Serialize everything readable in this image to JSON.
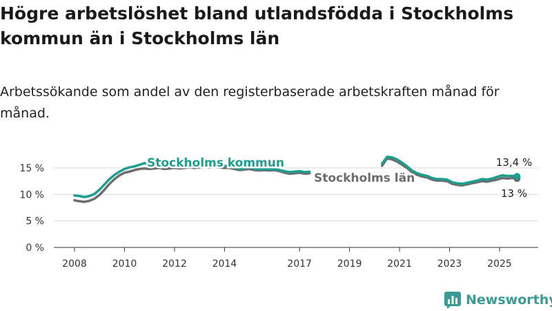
{
  "title": "Högre arbetslöshet bland utlandsfödda i Stockholms kommun än i Stockholms län",
  "subtitle": "Arbetssökande som andel av den registerbaserade arbetskraften månad för månad.",
  "brand": {
    "name": "Newsworthy",
    "icon": "newsworthy-chart-logo-icon",
    "color": "#3a9b95"
  },
  "chart_data": {
    "type": "line",
    "ylim": [
      0,
      17
    ],
    "xlim": [
      2007.6,
      2026.1
    ],
    "yticks": [
      {
        "value": 0,
        "label": "0 %"
      },
      {
        "value": 5,
        "label": "5 %"
      },
      {
        "value": 10,
        "label": "10 %"
      },
      {
        "value": 15,
        "label": "15 %"
      }
    ],
    "xticks": [
      {
        "value": 2008,
        "label": "2008"
      },
      {
        "value": 2010,
        "label": "2010"
      },
      {
        "value": 2012,
        "label": "2012"
      },
      {
        "value": 2014,
        "label": "2014"
      },
      {
        "value": 2017,
        "label": "2017"
      },
      {
        "value": 2019,
        "label": "2019"
      },
      {
        "value": 2021,
        "label": "2021"
      },
      {
        "value": 2023,
        "label": "2023"
      },
      {
        "value": 2025,
        "label": "2025"
      }
    ],
    "grid": true,
    "series": [
      {
        "name": "Stockholms län",
        "color": "#6d6d6d",
        "label_color": "#6d6d6d",
        "end_label": "13 %",
        "end_value": 13.0,
        "segments": [
          [
            [
              2008.0,
              8.9
            ],
            [
              2008.2,
              8.7
            ],
            [
              2008.4,
              8.6
            ],
            [
              2008.6,
              8.8
            ],
            [
              2008.8,
              9.2
            ],
            [
              2009.0,
              9.9
            ],
            [
              2009.2,
              10.9
            ],
            [
              2009.4,
              12.0
            ],
            [
              2009.6,
              12.9
            ],
            [
              2009.8,
              13.6
            ],
            [
              2010.0,
              14.1
            ],
            [
              2010.2,
              14.3
            ],
            [
              2010.4,
              14.6
            ],
            [
              2010.6,
              14.8
            ],
            [
              2010.8,
              14.9
            ],
            [
              2011.0,
              14.8
            ],
            [
              2011.2,
              14.9
            ],
            [
              2011.4,
              15.0
            ],
            [
              2011.6,
              14.8
            ],
            [
              2011.8,
              14.9
            ],
            [
              2012.0,
              15.0
            ],
            [
              2012.2,
              14.9
            ],
            [
              2012.4,
              15.0
            ],
            [
              2012.6,
              15.1
            ],
            [
              2012.8,
              15.0
            ],
            [
              2013.0,
              15.1
            ],
            [
              2013.2,
              15.2
            ],
            [
              2013.4,
              15.1
            ],
            [
              2013.6,
              15.2
            ],
            [
              2013.8,
              15.1
            ],
            [
              2014.0,
              15.0
            ],
            [
              2014.2,
              15.0
            ],
            [
              2014.4,
              14.8
            ],
            [
              2014.6,
              14.6
            ],
            [
              2014.8,
              14.7
            ],
            [
              2015.0,
              14.8
            ],
            [
              2015.2,
              14.6
            ],
            [
              2015.4,
              14.5
            ],
            [
              2015.6,
              14.6
            ],
            [
              2015.8,
              14.5
            ],
            [
              2016.0,
              14.6
            ],
            [
              2016.2,
              14.4
            ],
            [
              2016.4,
              14.1
            ],
            [
              2016.6,
              13.9
            ],
            [
              2016.8,
              14.0
            ],
            [
              2017.0,
              14.1
            ],
            [
              2017.2,
              13.9
            ],
            [
              2017.4,
              14.0
            ]
          ],
          [
            [
              2020.3,
              15.4
            ],
            [
              2020.5,
              16.8
            ],
            [
              2020.7,
              16.6
            ],
            [
              2020.9,
              16.2
            ],
            [
              2021.1,
              15.6
            ],
            [
              2021.3,
              15.0
            ],
            [
              2021.5,
              14.2
            ],
            [
              2021.7,
              13.7
            ],
            [
              2021.9,
              13.4
            ],
            [
              2022.1,
              13.2
            ],
            [
              2022.3,
              12.8
            ],
            [
              2022.5,
              12.6
            ],
            [
              2022.7,
              12.6
            ],
            [
              2022.9,
              12.5
            ],
            [
              2023.1,
              12.0
            ],
            [
              2023.3,
              11.8
            ],
            [
              2023.5,
              11.7
            ],
            [
              2023.7,
              11.9
            ],
            [
              2023.9,
              12.1
            ],
            [
              2024.1,
              12.3
            ],
            [
              2024.3,
              12.5
            ],
            [
              2024.5,
              12.4
            ],
            [
              2024.7,
              12.6
            ],
            [
              2024.9,
              12.8
            ],
            [
              2025.1,
              13.1
            ],
            [
              2025.3,
              13.0
            ],
            [
              2025.5,
              13.1
            ],
            [
              2025.7,
              13.0
            ]
          ]
        ]
      },
      {
        "name": "Stockholms kommun",
        "color": "#1a9e8f",
        "label_color": "#1a9e8f",
        "end_label": "13,4 %",
        "end_value": 13.4,
        "segments": [
          [
            [
              2008.0,
              9.8
            ],
            [
              2008.2,
              9.7
            ],
            [
              2008.4,
              9.5
            ],
            [
              2008.6,
              9.7
            ],
            [
              2008.8,
              10.1
            ],
            [
              2009.0,
              10.9
            ],
            [
              2009.2,
              11.9
            ],
            [
              2009.4,
              12.9
            ],
            [
              2009.6,
              13.7
            ],
            [
              2009.8,
              14.3
            ],
            [
              2010.0,
              14.8
            ],
            [
              2010.2,
              15.1
            ],
            [
              2010.4,
              15.3
            ],
            [
              2010.6,
              15.6
            ],
            [
              2010.8,
              15.9
            ],
            [
              2011.0,
              15.6
            ],
            [
              2011.2,
              15.7
            ],
            [
              2011.4,
              15.6
            ],
            [
              2011.6,
              15.3
            ],
            [
              2011.8,
              15.5
            ],
            [
              2012.0,
              15.6
            ],
            [
              2012.2,
              15.4
            ],
            [
              2012.4,
              15.5
            ],
            [
              2012.6,
              15.6
            ],
            [
              2012.8,
              15.4
            ],
            [
              2013.0,
              15.6
            ],
            [
              2013.2,
              15.7
            ],
            [
              2013.4,
              15.5
            ],
            [
              2013.6,
              15.6
            ],
            [
              2013.8,
              15.5
            ],
            [
              2014.0,
              15.4
            ],
            [
              2014.2,
              15.3
            ],
            [
              2014.4,
              15.1
            ],
            [
              2014.6,
              14.8
            ],
            [
              2014.8,
              15.0
            ],
            [
              2015.0,
              15.1
            ],
            [
              2015.2,
              14.9
            ],
            [
              2015.4,
              14.7
            ],
            [
              2015.6,
              14.8
            ],
            [
              2015.8,
              14.7
            ],
            [
              2016.0,
              14.8
            ],
            [
              2016.2,
              14.6
            ],
            [
              2016.4,
              14.4
            ],
            [
              2016.6,
              14.2
            ],
            [
              2016.8,
              14.3
            ],
            [
              2017.0,
              14.4
            ],
            [
              2017.2,
              14.2
            ],
            [
              2017.4,
              14.3
            ]
          ],
          [
            [
              2020.3,
              15.8
            ],
            [
              2020.5,
              17.1
            ],
            [
              2020.7,
              17.0
            ],
            [
              2020.9,
              16.6
            ],
            [
              2021.1,
              16.0
            ],
            [
              2021.3,
              15.3
            ],
            [
              2021.5,
              14.5
            ],
            [
              2021.7,
              14.0
            ],
            [
              2021.9,
              13.7
            ],
            [
              2022.1,
              13.5
            ],
            [
              2022.3,
              13.1
            ],
            [
              2022.5,
              12.9
            ],
            [
              2022.7,
              12.9
            ],
            [
              2022.9,
              12.8
            ],
            [
              2023.1,
              12.3
            ],
            [
              2023.3,
              12.1
            ],
            [
              2023.5,
              12.0
            ],
            [
              2023.7,
              12.2
            ],
            [
              2023.9,
              12.4
            ],
            [
              2024.1,
              12.6
            ],
            [
              2024.3,
              12.9
            ],
            [
              2024.5,
              12.8
            ],
            [
              2024.7,
              13.0
            ],
            [
              2024.9,
              13.3
            ],
            [
              2025.1,
              13.6
            ],
            [
              2025.3,
              13.5
            ],
            [
              2025.5,
              13.5
            ],
            [
              2025.7,
              13.4
            ]
          ]
        ]
      }
    ]
  }
}
